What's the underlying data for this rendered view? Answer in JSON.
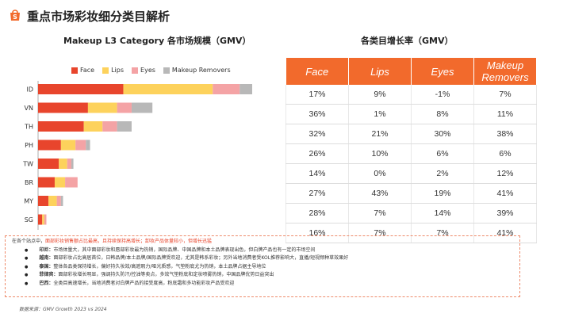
{
  "page_title": "重点市场彩妆细分类目解析",
  "brand": {
    "accent": "#f26a2c"
  },
  "chart_title": "Makeup L3 Category 各市场规模（GMV）",
  "table_title": "各类目增长率（GMV）",
  "chart_data": {
    "type": "bar",
    "orientation": "horizontal-stacked",
    "categories": [
      "ID",
      "VN",
      "TH",
      "PH",
      "TW",
      "BR",
      "MY",
      "SG"
    ],
    "series": [
      {
        "name": "Face",
        "color": "#e8452c",
        "values": [
          41,
          24,
          22,
          11,
          10,
          8,
          5,
          2
        ]
      },
      {
        "name": "Lips",
        "color": "#fdd25c",
        "values": [
          43,
          14,
          9,
          7,
          4,
          5,
          4,
          1
        ]
      },
      {
        "name": "Eyes",
        "color": "#f4a3a5",
        "values": [
          13,
          7,
          7,
          5,
          2,
          6,
          2,
          1
        ]
      },
      {
        "name": "Makeup Removers",
        "color": "#b8b8b8",
        "values": [
          6,
          10,
          7,
          2,
          1,
          0,
          1,
          0
        ]
      }
    ],
    "xlim": [
      0,
      103
    ],
    "grid": false,
    "legend": "top"
  },
  "growth_table": {
    "headers": [
      "Face",
      "Lips",
      "Eyes",
      "Makeup Removers"
    ],
    "rows": [
      [
        "17%",
        "9%",
        "-1%",
        "7%"
      ],
      [
        "36%",
        "1%",
        "8%",
        "11%"
      ],
      [
        "32%",
        "21%",
        "30%",
        "38%"
      ],
      [
        "26%",
        "10%",
        "6%",
        "6%"
      ],
      [
        "14%",
        "0%",
        "2%",
        "12%"
      ],
      [
        "27%",
        "43%",
        "19%",
        "41%"
      ],
      [
        "28%",
        "7%",
        "14%",
        "39%"
      ],
      [
        "16%",
        "7%",
        "7%",
        "41%"
      ]
    ]
  },
  "notes": {
    "headline_prefix": "在各个站点中，",
    "headline_highlight": "面部彩妆销售额占比最高，且持续保持高增长；卸妆产品体量较小，但增长迅猛",
    "items": [
      {
        "market": "印尼：",
        "text": "市场体量大，其中面部彩妆和唇部彩妆最为热销，国际品牌、中国品牌和本土品牌表现出色，但白牌产品也有一定的市场空间"
      },
      {
        "market": "越南：",
        "text": "面部彩妆占比高居首位，日韩品牌/本土品牌/国际品牌受欢迎，尤其是韩系彩妆；另外当地消费者受KOL推荐影响大，直播/短视频种草效果好"
      },
      {
        "market": "泰国：",
        "text": "整体各品类保持增长，偏好持久妆效/高遮瑕力/哑光质感，气垫粉底尤为热销，本土品牌占据主导地位"
      },
      {
        "market": "菲律宾：",
        "text": "面部彩妆增长明显，强调持久防汗/控油等卖点，多效气垫粉底和定妆喷雾热销，中国品牌优势日益突出"
      },
      {
        "market": "巴西：",
        "text": "全类目高速增长，当地消费者对白牌产品的接受度高，粉底霜和多功能彩妆产品受欢迎"
      }
    ]
  },
  "source": "数据来源：GMV Growth 2023 vs 2024"
}
